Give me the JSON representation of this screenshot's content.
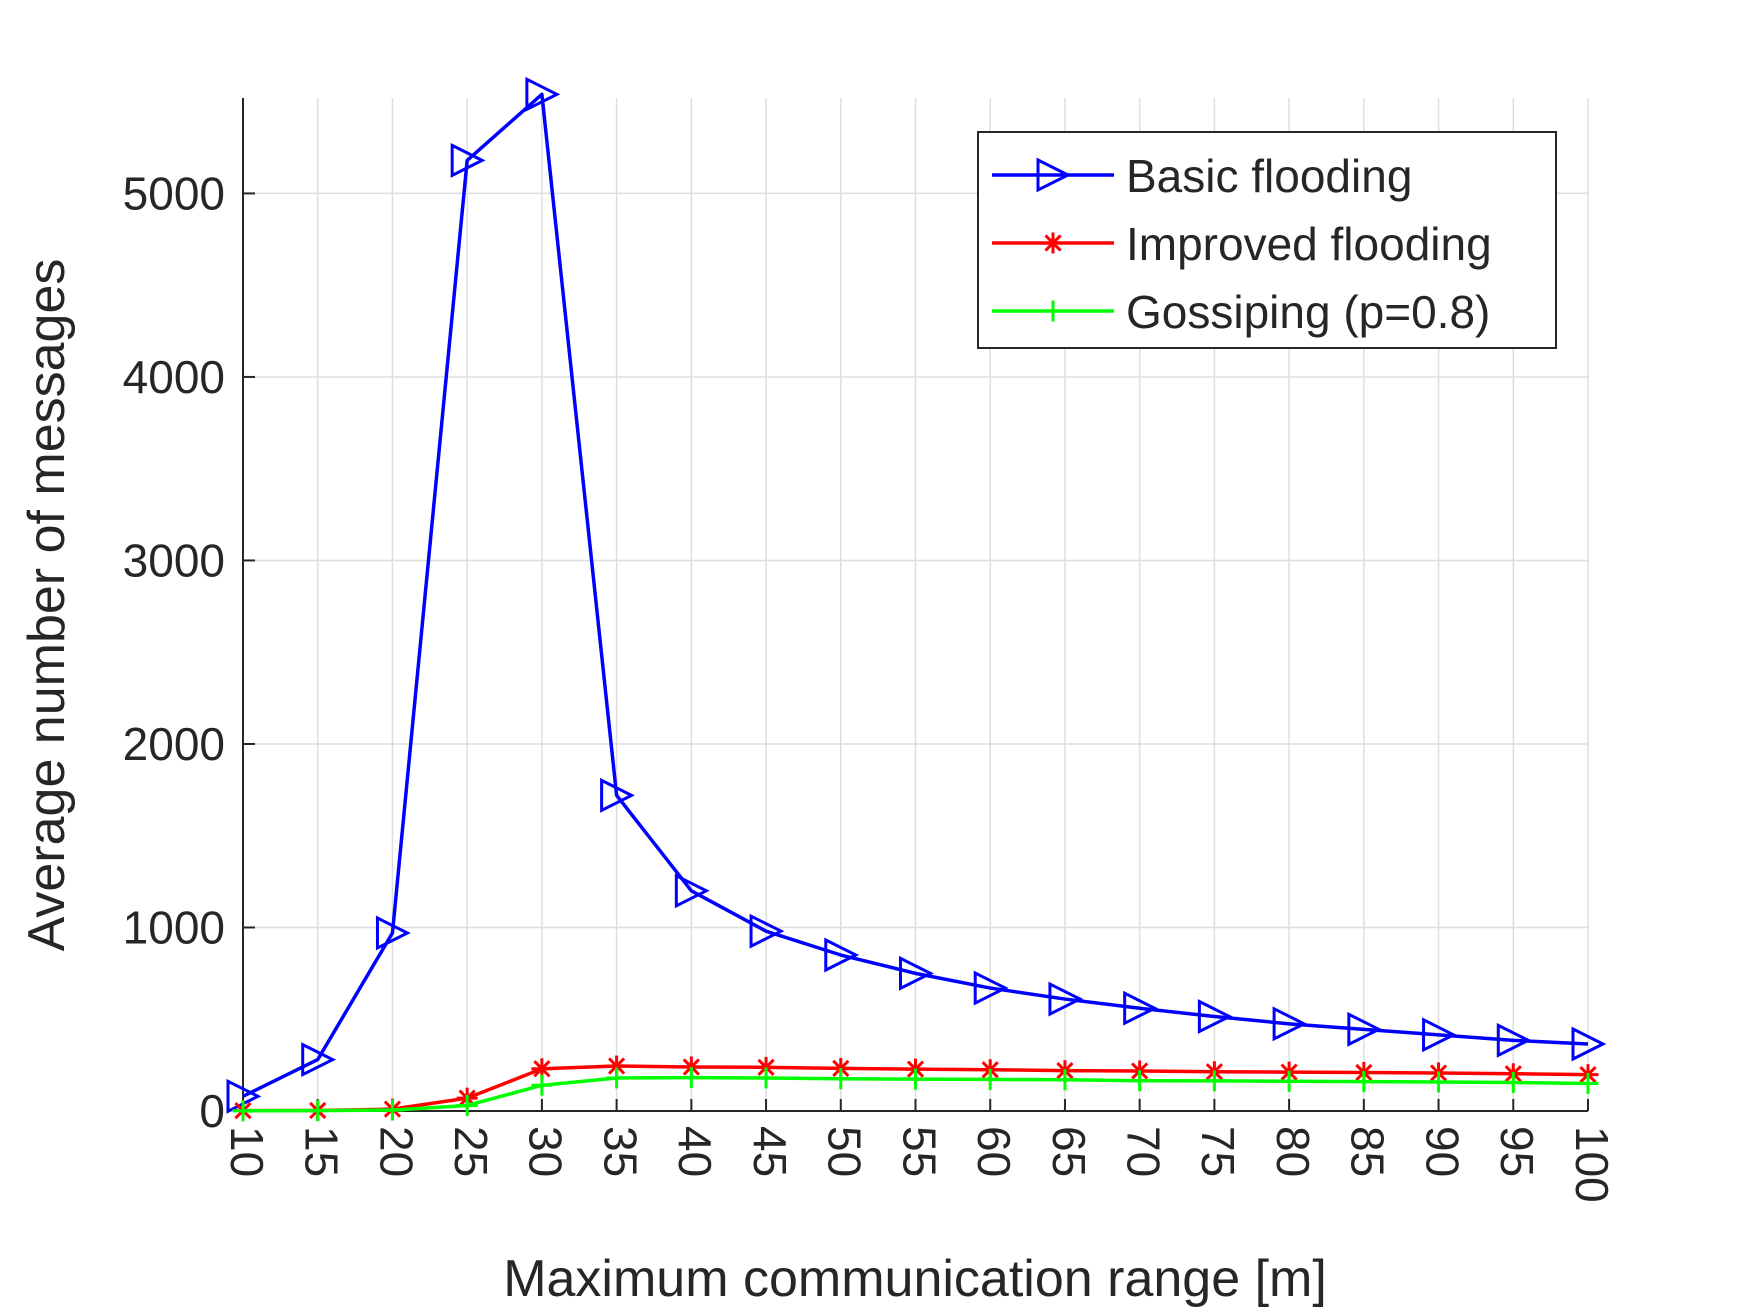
{
  "chart_data": {
    "type": "line",
    "title": "",
    "xlabel": "Maximum communication range [m]",
    "ylabel": "Average number of messages",
    "x": [
      10,
      15,
      20,
      25,
      30,
      35,
      40,
      45,
      50,
      55,
      60,
      65,
      70,
      75,
      80,
      85,
      90,
      95,
      100
    ],
    "xlim": [
      10,
      100
    ],
    "ylim": [
      0,
      5520
    ],
    "yticks": [
      0,
      1000,
      2000,
      3000,
      4000,
      5000
    ],
    "grid": true,
    "legend_position": "top-right",
    "series": [
      {
        "name": "Basic flooding",
        "color": "#0000ff",
        "marker": "triangle-right",
        "values": [
          80,
          280,
          970,
          5180,
          5540,
          1720,
          1200,
          980,
          850,
          750,
          670,
          610,
          560,
          515,
          475,
          445,
          415,
          385,
          365
        ]
      },
      {
        "name": "Improved flooding",
        "color": "#ff0000",
        "marker": "asterisk",
        "values": [
          2,
          3,
          10,
          70,
          230,
          245,
          240,
          238,
          232,
          228,
          225,
          220,
          218,
          214,
          212,
          210,
          207,
          203,
          198
        ]
      },
      {
        "name": "Gossiping (p=0.8)",
        "color": "#00ff00",
        "marker": "plus",
        "values": [
          1,
          2,
          5,
          30,
          140,
          180,
          182,
          180,
          176,
          174,
          172,
          170,
          165,
          164,
          162,
          160,
          158,
          155,
          150
        ]
      }
    ]
  }
}
